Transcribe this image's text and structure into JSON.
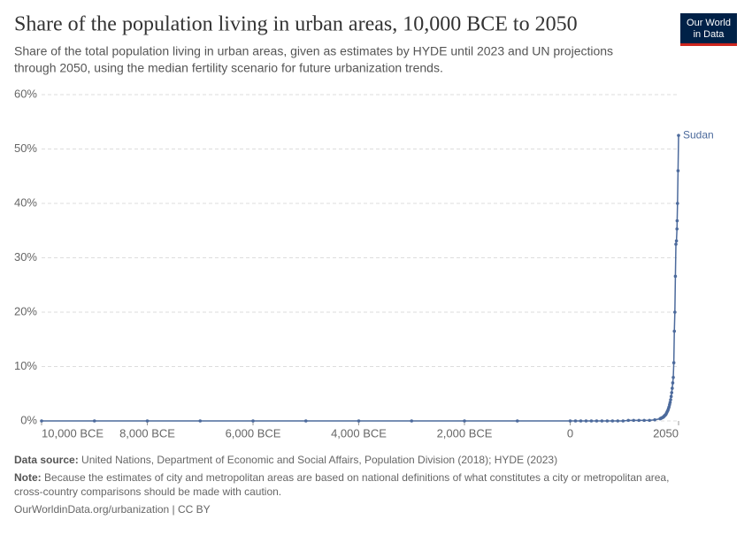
{
  "chart_data": {
    "type": "line",
    "title": "Share of the population living in urban areas, 10,000 BCE to 2050",
    "subtitle": [
      "Share of the total population living in urban areas, given as estimates by HYDE until 2023 and UN projections",
      "through 2050, using the median fertility scenario for future urbanization trends."
    ],
    "logo": [
      "Our World",
      "in Data"
    ],
    "x": [
      -10000,
      -9000,
      -8000,
      -7000,
      -6000,
      -5000,
      -4000,
      -3000,
      -2000,
      -1000,
      0,
      100,
      200,
      300,
      400,
      500,
      600,
      700,
      800,
      900,
      1000,
      1100,
      1200,
      1300,
      1400,
      1500,
      1600,
      1700,
      1710,
      1720,
      1730,
      1740,
      1750,
      1760,
      1770,
      1780,
      1790,
      1800,
      1810,
      1820,
      1830,
      1840,
      1850,
      1860,
      1870,
      1880,
      1890,
      1900,
      1910,
      1920,
      1930,
      1940,
      1950,
      1960,
      1970,
      1980,
      1990,
      2000,
      2010,
      2020,
      2023,
      2030,
      2040,
      2050
    ],
    "series": [
      {
        "name": "Sudan",
        "color": "#4c6a9c",
        "values": [
          0,
          0,
          0,
          0,
          0,
          0,
          0,
          0,
          0,
          0,
          0,
          0,
          0,
          0,
          0,
          0,
          0,
          0,
          0,
          0,
          0,
          0.1,
          0.1,
          0.1,
          0.1,
          0.1,
          0.2,
          0.4,
          0.45,
          0.5,
          0.55,
          0.6,
          0.65,
          0.7,
          0.8,
          0.9,
          1.0,
          1.1,
          1.2,
          1.4,
          1.6,
          1.8,
          2.0,
          2.3,
          2.6,
          3.0,
          3.4,
          3.9,
          4.5,
          5.2,
          6.0,
          7.0,
          8.0,
          10.7,
          16.5,
          20.0,
          26.6,
          32.5,
          33.1,
          35.3,
          36.8,
          40.0,
          46.0,
          52.5
        ]
      }
    ],
    "xlim": [
      -10000,
      2050
    ],
    "xticks": [
      {
        "value": -10000,
        "label": "10,000 BCE"
      },
      {
        "value": -8000,
        "label": "8,000 BCE"
      },
      {
        "value": -6000,
        "label": "6,000 BCE"
      },
      {
        "value": -4000,
        "label": "4,000 BCE"
      },
      {
        "value": -2000,
        "label": "2,000 BCE"
      },
      0,
      2050
    ],
    "ylim": [
      0,
      60
    ],
    "yticks": [
      {
        "value": 0,
        "label": "0%"
      },
      {
        "value": 10,
        "label": "10%"
      },
      {
        "value": 20,
        "label": "20%"
      },
      {
        "value": 30,
        "label": "30%"
      },
      {
        "value": 40,
        "label": "40%"
      },
      {
        "value": 50,
        "label": "50%"
      },
      {
        "value": 60,
        "label": "60%"
      }
    ],
    "grid": true,
    "source_label": "Data source:",
    "source": "United Nations, Department of Economic and Social Affairs, Population Division (2018); HYDE (2023)",
    "note_label": "Note:",
    "note": [
      "Because the estimates of city and metropolitan areas are based on national definitions of what constitutes a city or metropolitan area,",
      "cross-country comparisons should be made with caution."
    ],
    "footer": "OurWorldinData.org/urbanization | CC BY"
  }
}
